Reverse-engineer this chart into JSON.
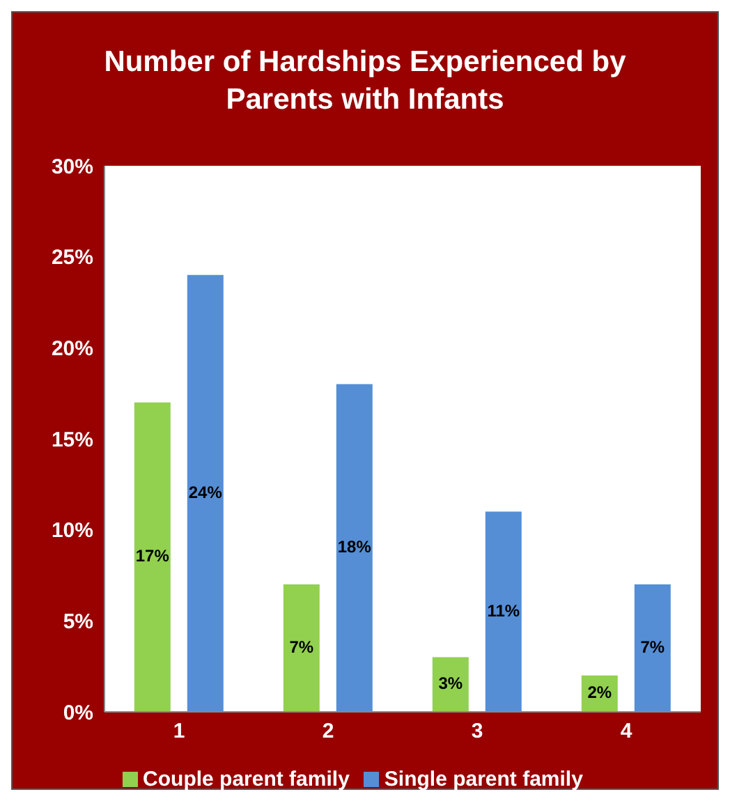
{
  "chart_data": {
    "type": "bar",
    "title": "Number of Hardships Experienced by Parents with Infants",
    "categories": [
      "1",
      "2",
      "3",
      "4"
    ],
    "series": [
      {
        "name": "Couple parent family",
        "color": "#92d050",
        "values": [
          17,
          7,
          3,
          2
        ],
        "value_labels": [
          "17%",
          "7%",
          "3%",
          "2%"
        ]
      },
      {
        "name": "Single parent family",
        "color": "#558ed5",
        "values": [
          24,
          18,
          11,
          7
        ],
        "value_labels": [
          "24%",
          "18%",
          "11%",
          "7%"
        ]
      }
    ],
    "ylim": [
      0,
      30
    ],
    "yticks": [
      {
        "value": 0,
        "label": "0%"
      },
      {
        "value": 5,
        "label": "5%"
      },
      {
        "value": 10,
        "label": "10%"
      },
      {
        "value": 15,
        "label": "15%"
      },
      {
        "value": 20,
        "label": "20%"
      },
      {
        "value": 25,
        "label": "25%"
      },
      {
        "value": 30,
        "label": "30%"
      }
    ],
    "grid": false,
    "legend": "bottom"
  }
}
